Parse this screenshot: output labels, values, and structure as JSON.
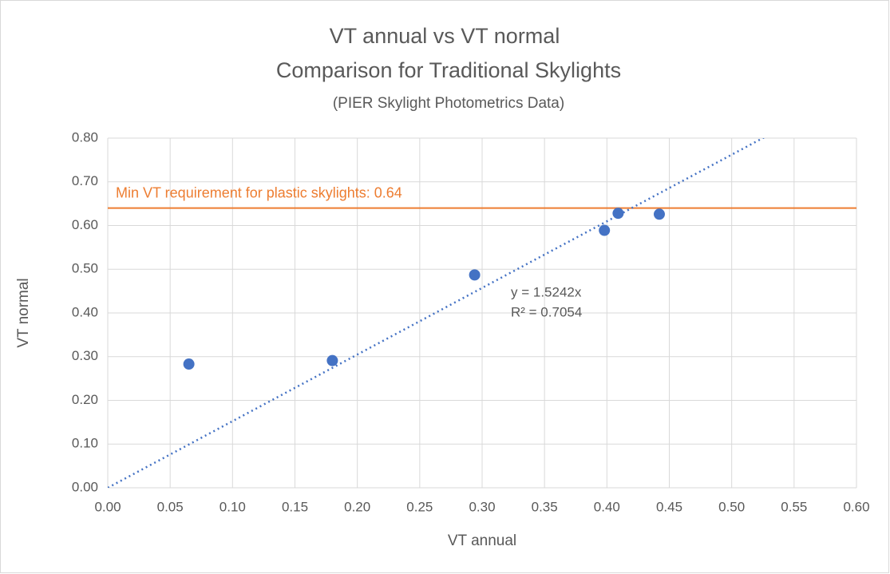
{
  "chart_data": {
    "type": "scatter",
    "title": "VT annual vs VT normal",
    "subtitle": "Comparison for Traditional Skylights",
    "note": "(PIER Skylight Photometrics Data)",
    "x_label": "VT annual",
    "y_label": "VT normal",
    "x": [
      0.065,
      0.18,
      0.294,
      0.398,
      0.409,
      0.442
    ],
    "values": [
      0.283,
      0.291,
      0.487,
      0.589,
      0.628,
      0.626
    ],
    "color": "#4472c4",
    "xlim": [
      0,
      0.6
    ],
    "ylim": [
      0,
      0.8
    ],
    "xticks": [
      {
        "value": 0,
        "label": "0.00"
      },
      {
        "value": 0.05,
        "label": "0.05"
      },
      {
        "value": 0.1,
        "label": "0.10"
      },
      {
        "value": 0.15,
        "label": "0.15"
      },
      {
        "value": 0.2,
        "label": "0.20"
      },
      {
        "value": 0.25,
        "label": "0.25"
      },
      {
        "value": 0.3,
        "label": "0.30"
      },
      {
        "value": 0.35,
        "label": "0.35"
      },
      {
        "value": 0.4,
        "label": "0.40"
      },
      {
        "value": 0.45,
        "label": "0.45"
      },
      {
        "value": 0.5,
        "label": "0.50"
      },
      {
        "value": 0.55,
        "label": "0.55"
      },
      {
        "value": 0.6,
        "label": "0.60"
      }
    ],
    "yticks": [
      {
        "value": 0,
        "label": "0.00"
      },
      {
        "value": 0.1,
        "label": "0.10"
      },
      {
        "value": 0.2,
        "label": "0.20"
      },
      {
        "value": 0.3,
        "label": "0.30"
      },
      {
        "value": 0.4,
        "label": "0.40"
      },
      {
        "value": 0.5,
        "label": "0.50"
      },
      {
        "value": 0.6,
        "label": "0.60"
      },
      {
        "value": 0.7,
        "label": "0.70"
      },
      {
        "value": 0.8,
        "label": "0.80"
      }
    ],
    "grid": true,
    "trendline": {
      "slope": 1.5242,
      "equation": "y = 1.5242x",
      "r_squared": "R² = 0.7054",
      "color": "#4472c4"
    },
    "reference_line": {
      "value": 0.64,
      "label": "Min VT requirement for plastic skylights: 0.64",
      "color": "#ed7d31"
    }
  }
}
